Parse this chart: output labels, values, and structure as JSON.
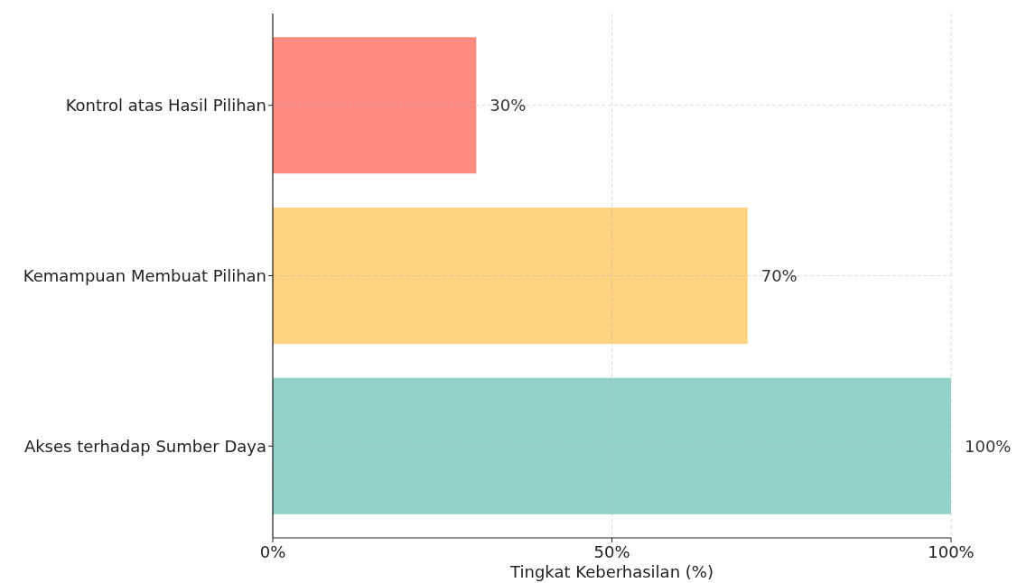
{
  "chart_data": {
    "type": "bar",
    "orientation": "horizontal",
    "xlabel": "Tingkat Keberhasilan (%)",
    "categories": [
      "Kontrol atas Hasil Pilihan",
      "Kemampuan Membuat Pilihan",
      "Akses terhadap Sumber Daya"
    ],
    "values": [
      30,
      70,
      100
    ],
    "colors": [
      "#ff8a80",
      "#ffd480",
      "#92d2cb"
    ],
    "value_labels": [
      "30%",
      "70%",
      "100%"
    ],
    "xlim": [
      0,
      100
    ],
    "xticks": [
      {
        "value": 0,
        "label": "0%"
      },
      {
        "value": 50,
        "label": "50%"
      },
      {
        "value": 100,
        "label": "100%"
      }
    ],
    "grid": true
  }
}
